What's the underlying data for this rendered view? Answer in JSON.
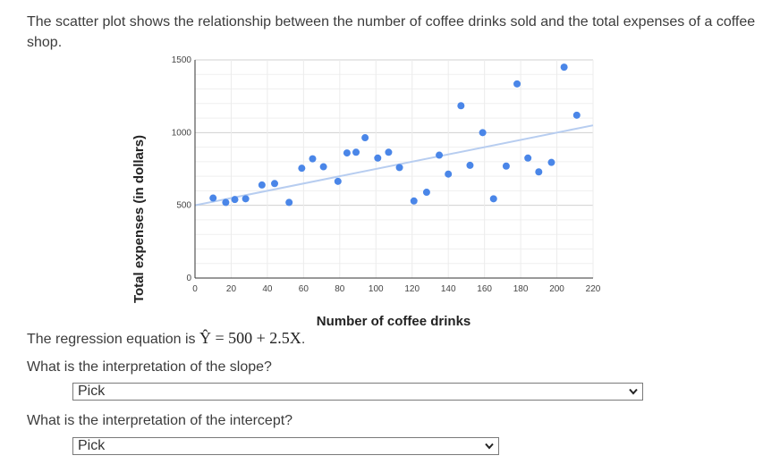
{
  "intro_text": "The scatter plot shows the relationship between the number of coffee drinks sold and the total expenses of a coffee shop.",
  "regression_prefix": "The regression equation is ",
  "regression_equation": "Ŷ = 500 + 2.5X",
  "regression_suffix": ".",
  "questions": [
    {
      "text": "What is the interpretation of the slope?",
      "selected": "Pick"
    },
    {
      "text": "What is the interpretation of the intercept?",
      "selected": "Pick"
    }
  ],
  "colors": {
    "points": "#4a86e8",
    "trendline": "#b7cdf0",
    "grid": "#e0e0e0"
  },
  "chart_data": {
    "type": "scatter",
    "xlabel": "Number of coffee drinks",
    "ylabel": "Total expenses (in dollars)",
    "xlim": [
      0,
      220
    ],
    "ylim": [
      0,
      1500
    ],
    "xticks": [
      0,
      20,
      40,
      60,
      80,
      100,
      120,
      140,
      160,
      180,
      200,
      220
    ],
    "yticks": [
      0,
      500,
      1000,
      1500
    ],
    "grid": true,
    "trendline": {
      "intercept": 500,
      "slope": 2.5
    },
    "points": [
      {
        "x": 10,
        "y": 550
      },
      {
        "x": 17,
        "y": 520
      },
      {
        "x": 22,
        "y": 540
      },
      {
        "x": 28,
        "y": 545
      },
      {
        "x": 37,
        "y": 640
      },
      {
        "x": 44,
        "y": 650
      },
      {
        "x": 52,
        "y": 520
      },
      {
        "x": 59,
        "y": 755
      },
      {
        "x": 65,
        "y": 820
      },
      {
        "x": 71,
        "y": 765
      },
      {
        "x": 79,
        "y": 665
      },
      {
        "x": 84,
        "y": 860
      },
      {
        "x": 89,
        "y": 865
      },
      {
        "x": 94,
        "y": 965
      },
      {
        "x": 101,
        "y": 825
      },
      {
        "x": 107,
        "y": 865
      },
      {
        "x": 113,
        "y": 760
      },
      {
        "x": 121,
        "y": 530
      },
      {
        "x": 128,
        "y": 590
      },
      {
        "x": 135,
        "y": 845
      },
      {
        "x": 140,
        "y": 715
      },
      {
        "x": 147,
        "y": 1185
      },
      {
        "x": 152,
        "y": 775
      },
      {
        "x": 159,
        "y": 1000
      },
      {
        "x": 165,
        "y": 545
      },
      {
        "x": 172,
        "y": 770
      },
      {
        "x": 178,
        "y": 1335
      },
      {
        "x": 184,
        "y": 825
      },
      {
        "x": 190,
        "y": 730
      },
      {
        "x": 197,
        "y": 795
      },
      {
        "x": 204,
        "y": 1450
      },
      {
        "x": 211,
        "y": 1120
      }
    ]
  }
}
